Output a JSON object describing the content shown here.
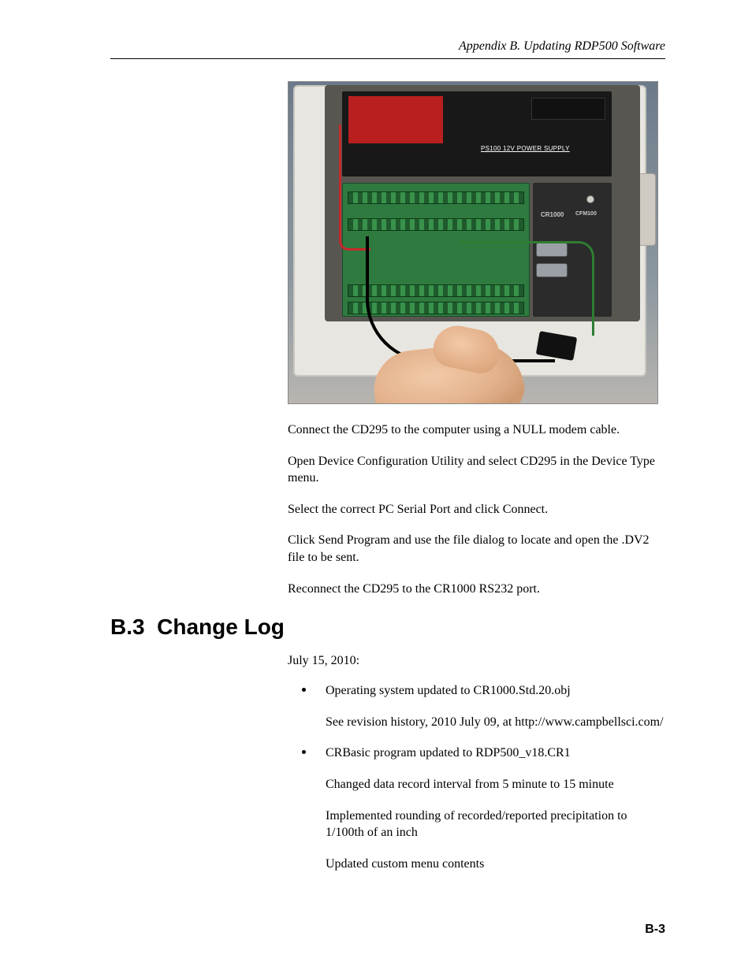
{
  "header": {
    "running_title": "Appendix B.  Updating RDP500 Software"
  },
  "photo_alt": "Hand connecting a serial cable to a CR1000 datalogger wiring panel inside an enclosure with a PS100 12V power supply",
  "steps": {
    "p1": "Connect the CD295 to the computer using a NULL modem cable.",
    "p2": "Open Device Configuration Utility and select CD295 in the Device Type menu.",
    "p3": "Select the correct PC Serial Port and click Connect.",
    "p4": "Click Send Program and use the file dialog to locate and open the .DV2 file to be sent.",
    "p5": "Reconnect the CD295 to the CR1000 RS232 port."
  },
  "section": {
    "number": "B.3",
    "title": "Change Log"
  },
  "changelog": {
    "date": "July 15, 2010:",
    "items": [
      {
        "lead": "Operating system updated to CR1000.Std.20.obj",
        "details": [
          "See revision history, 2010 July 09, at http://www.campbellsci.com/"
        ]
      },
      {
        "lead": "CRBasic program updated to RDP500_v18.CR1",
        "details": [
          "Changed data record interval from 5 minute to 15 minute",
          "Implemented rounding of recorded/reported precipitation to 1/100th of an inch",
          "Updated custom menu contents"
        ]
      }
    ]
  },
  "page_number": "B-3",
  "colors": {
    "text": "#000000",
    "background": "#ffffff"
  },
  "typography": {
    "body_family": "Times New Roman",
    "body_size_pt": 12,
    "heading_family": "Arial",
    "heading_size_pt": 21,
    "heading_weight": "bold",
    "page_number_family": "Arial",
    "page_number_weight": "bold"
  }
}
